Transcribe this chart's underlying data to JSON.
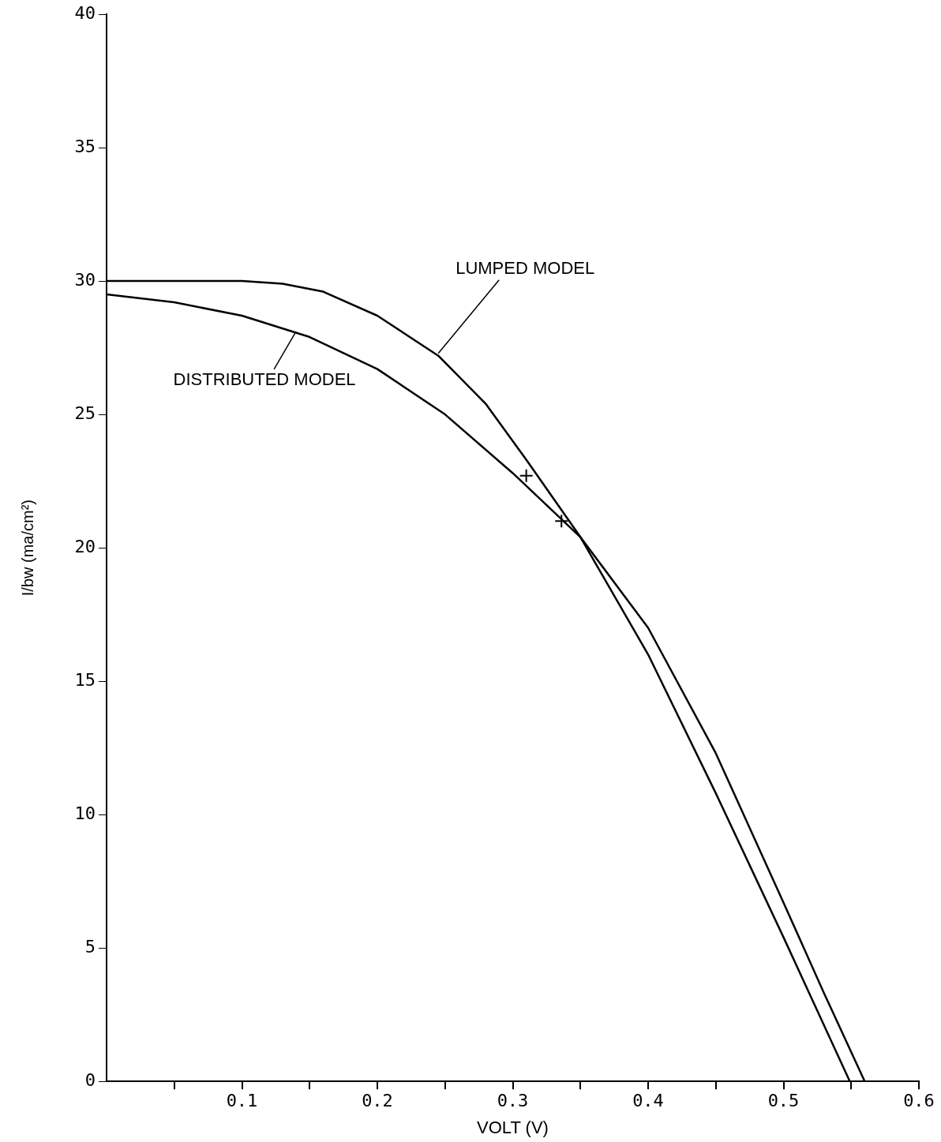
{
  "chart_data": {
    "type": "line",
    "xlabel": "VOLT (V)",
    "ylabel": "I/bw (ma/cm²)",
    "xlim": [
      0,
      0.6
    ],
    "ylim": [
      0,
      40
    ],
    "xticks": [
      {
        "value": 0.05,
        "label": null
      },
      0.1,
      {
        "value": 0.15,
        "label": null
      },
      0.2,
      {
        "value": 0.25,
        "label": null
      },
      0.3,
      {
        "value": 0.35,
        "label": null
      },
      0.4,
      {
        "value": 0.45,
        "label": null
      },
      0.5,
      {
        "value": 0.55,
        "label": null
      },
      0.6
    ],
    "yticks": [
      0,
      5,
      10,
      15,
      20,
      25,
      30,
      35,
      40
    ],
    "grid": false,
    "legend": false,
    "marker": "none",
    "line_style": "solid",
    "series": [
      {
        "color": "#000000",
        "x": [
          0,
          0.05,
          0.1,
          0.13,
          0.16,
          0.2,
          0.245,
          0.28,
          0.31,
          0.35,
          0.4,
          0.45,
          0.5,
          0.549
        ],
        "values": [
          30,
          30,
          30,
          29.9,
          29.6,
          28.7,
          27.2,
          25.4,
          23.3,
          20.4,
          16.0,
          10.8,
          5.4,
          0
        ]
      },
      {
        "color": "#000000",
        "x": [
          0,
          0.05,
          0.1,
          0.15,
          0.2,
          0.25,
          0.3,
          0.35,
          0.4,
          0.45,
          0.5,
          0.53,
          0.56
        ],
        "values": [
          29.5,
          29.2,
          28.7,
          27.9,
          26.7,
          25.0,
          22.8,
          20.4,
          17.0,
          12.3,
          6.7,
          3.3,
          0
        ]
      },
      {
        "type": "scatter",
        "marker": "cross",
        "color": "#000000",
        "x": [
          0.31,
          0.336
        ],
        "values": [
          22.7,
          21.0
        ]
      }
    ],
    "annotations": [
      {
        "text": "LUMPED MODEL",
        "x": 0.245,
        "y": 27.2
      },
      {
        "text": "DISTRIBUTED MODEL",
        "x": 0.14,
        "y": 28.2
      }
    ]
  }
}
